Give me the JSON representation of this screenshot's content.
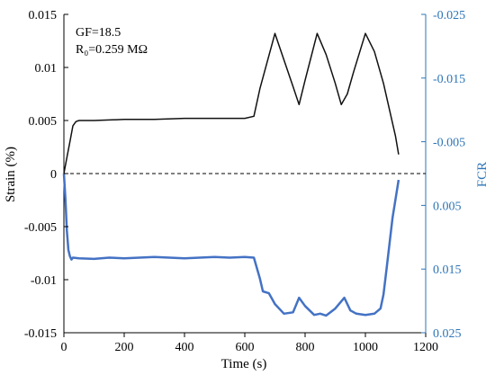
{
  "chart_data": {
    "type": "line",
    "xlabel": "Time (s)",
    "ylabel": "Strain (%)",
    "y2label": "FCR",
    "xlim": [
      0,
      1200
    ],
    "ylim": [
      -0.015,
      0.015
    ],
    "y2lim": [
      -0.025,
      0.025
    ],
    "y2_inverted": true,
    "x_ticks": [
      "0",
      "200",
      "400",
      "600",
      "800",
      "1000",
      "1200"
    ],
    "y_ticks": [
      "0.015",
      "0.01",
      "0.005",
      "0",
      "-0.005",
      "-0.01",
      "-0.015"
    ],
    "y2_ticks": [
      "-0.025",
      "-0.015",
      "-0.005",
      "0.005",
      "0.015",
      "0.025"
    ],
    "grid": false,
    "annotations": [
      "GF=18.5",
      "R₀=0.259 MΩ"
    ],
    "colors": {
      "strain": "#111111",
      "fcr": "#4472C4",
      "right_axis": "#2E75B6",
      "zero_line": "#000000"
    },
    "series": [
      {
        "axis": "left",
        "x": [
          0,
          10,
          20,
          30,
          40,
          50,
          100,
          200,
          300,
          400,
          500,
          600,
          630,
          650,
          700,
          760,
          780,
          800,
          840,
          870,
          900,
          920,
          940,
          960,
          1000,
          1030,
          1060,
          1080,
          1100,
          1110
        ],
        "y": [
          0,
          0.0015,
          0.003,
          0.0045,
          0.0049,
          0.005,
          0.005,
          0.0051,
          0.0051,
          0.0052,
          0.0052,
          0.0052,
          0.0054,
          0.008,
          0.0132,
          0.0082,
          0.0065,
          0.0088,
          0.0132,
          0.0112,
          0.0085,
          0.0065,
          0.0075,
          0.0095,
          0.0132,
          0.0115,
          0.0085,
          0.006,
          0.0035,
          0.0018
        ]
      },
      {
        "axis": "right",
        "x": [
          0,
          5,
          10,
          15,
          20,
          25,
          30,
          50,
          100,
          150,
          200,
          250,
          300,
          350,
          400,
          450,
          500,
          550,
          600,
          630,
          650,
          660,
          680,
          700,
          730,
          760,
          780,
          800,
          830,
          850,
          870,
          900,
          930,
          950,
          970,
          1000,
          1030,
          1050,
          1060,
          1070,
          1080,
          1090,
          1100,
          1110
        ],
        "y": [
          0.0,
          0.004,
          0.009,
          0.012,
          0.013,
          0.0135,
          0.0132,
          0.0133,
          0.0134,
          0.0132,
          0.0133,
          0.0132,
          0.0131,
          0.0132,
          0.0133,
          0.0132,
          0.0131,
          0.0132,
          0.0131,
          0.0132,
          0.0165,
          0.0185,
          0.0188,
          0.0205,
          0.022,
          0.0218,
          0.0195,
          0.0208,
          0.0222,
          0.022,
          0.0223,
          0.0212,
          0.0195,
          0.0215,
          0.022,
          0.0222,
          0.022,
          0.0212,
          0.019,
          0.015,
          0.011,
          0.007,
          0.004,
          0.001
        ]
      }
    ]
  }
}
